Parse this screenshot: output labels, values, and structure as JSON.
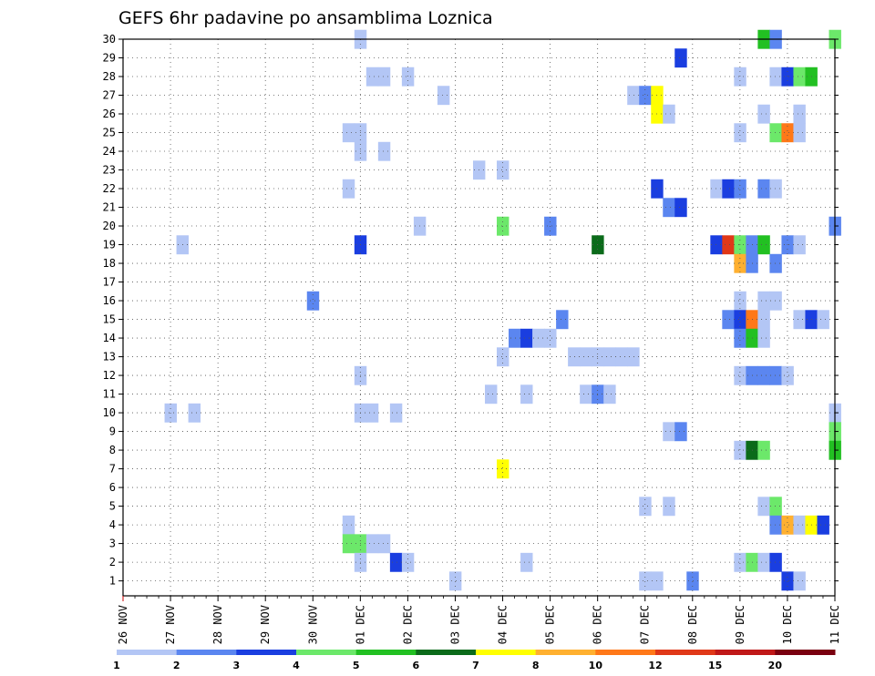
{
  "chart_data": {
    "type": "heatmap",
    "title": "GEFS 6hr padavine po ansamblima Loznica",
    "xlabel": "",
    "ylabel": "",
    "x_ticks": [
      "26 NOV",
      "27 NOV",
      "28 NOV",
      "29 NOV",
      "30 NOV",
      "01 DEC",
      "02 DEC",
      "03 DEC",
      "04 DEC",
      "05 DEC",
      "06 DEC",
      "07 DEC",
      "08 DEC",
      "09 DEC",
      "10 DEC",
      "11 DEC"
    ],
    "y_ticks": [
      1,
      2,
      3,
      4,
      5,
      6,
      7,
      8,
      9,
      10,
      11,
      12,
      13,
      14,
      15,
      16,
      17,
      18,
      19,
      20,
      21,
      22,
      23,
      24,
      25,
      26,
      27,
      28,
      29,
      30
    ],
    "x_range_days": [
      0,
      15
    ],
    "y_range": [
      0.2,
      30
    ],
    "grid": true,
    "legend_placement": "bottom",
    "legend_labels": [
      "1",
      "2",
      "3",
      "4",
      "5",
      "6",
      "7",
      "8",
      "10",
      "12",
      "15",
      "20"
    ],
    "legend_colors": [
      "#b3c6f5",
      "#5b86f0",
      "#1a3ee0",
      "#6ce86a",
      "#22c022",
      "#0b6b1a",
      "#ffff00",
      "#ffb030",
      "#ff7818",
      "#e03818",
      "#c01818",
      "#7a0010"
    ],
    "value_units": "mm / 6h",
    "cells": [
      {
        "d": 5.0,
        "m": 30,
        "c": 0
      },
      {
        "d": 13.5,
        "m": 30,
        "c": 4
      },
      {
        "d": 13.75,
        "m": 30,
        "c": 1
      },
      {
        "d": 15.0,
        "m": 30,
        "c": 3
      },
      {
        "d": 11.75,
        "m": 29,
        "c": 2
      },
      {
        "d": 5.25,
        "m": 28,
        "c": 0
      },
      {
        "d": 5.5,
        "m": 28,
        "c": 0
      },
      {
        "d": 6.0,
        "m": 28,
        "c": 0
      },
      {
        "d": 13.0,
        "m": 28,
        "c": 0
      },
      {
        "d": 13.75,
        "m": 28,
        "c": 0
      },
      {
        "d": 14.0,
        "m": 28,
        "c": 2
      },
      {
        "d": 14.25,
        "m": 28,
        "c": 3
      },
      {
        "d": 14.5,
        "m": 28,
        "c": 4
      },
      {
        "d": 6.75,
        "m": 27,
        "c": 0
      },
      {
        "d": 10.75,
        "m": 27,
        "c": 0
      },
      {
        "d": 11.0,
        "m": 27,
        "c": 1
      },
      {
        "d": 11.25,
        "m": 27,
        "c": 6
      },
      {
        "d": 11.25,
        "m": 26,
        "c": 6
      },
      {
        "d": 11.5,
        "m": 26,
        "c": 0
      },
      {
        "d": 13.5,
        "m": 26,
        "c": 0
      },
      {
        "d": 14.25,
        "m": 26,
        "c": 0
      },
      {
        "d": 4.75,
        "m": 25,
        "c": 0
      },
      {
        "d": 5.0,
        "m": 25,
        "c": 0
      },
      {
        "d": 13.0,
        "m": 25,
        "c": 0
      },
      {
        "d": 13.75,
        "m": 25,
        "c": 3
      },
      {
        "d": 14.0,
        "m": 25,
        "c": 8
      },
      {
        "d": 14.25,
        "m": 25,
        "c": 0
      },
      {
        "d": 5.0,
        "m": 24,
        "c": 0
      },
      {
        "d": 5.5,
        "m": 24,
        "c": 0
      },
      {
        "d": 7.5,
        "m": 23,
        "c": 0
      },
      {
        "d": 8.0,
        "m": 23,
        "c": 0
      },
      {
        "d": 4.75,
        "m": 22,
        "c": 0
      },
      {
        "d": 11.25,
        "m": 22,
        "c": 2
      },
      {
        "d": 12.5,
        "m": 22,
        "c": 0
      },
      {
        "d": 12.75,
        "m": 22,
        "c": 2
      },
      {
        "d": 13.0,
        "m": 22,
        "c": 1
      },
      {
        "d": 13.5,
        "m": 22,
        "c": 1
      },
      {
        "d": 13.75,
        "m": 22,
        "c": 0
      },
      {
        "d": 11.5,
        "m": 21,
        "c": 1
      },
      {
        "d": 11.75,
        "m": 21,
        "c": 2
      },
      {
        "d": 6.25,
        "m": 20,
        "c": 0
      },
      {
        "d": 8.0,
        "m": 20,
        "c": 3
      },
      {
        "d": 9.0,
        "m": 20,
        "c": 1
      },
      {
        "d": 15.0,
        "m": 20,
        "c": 1
      },
      {
        "d": 1.25,
        "m": 19,
        "c": 0
      },
      {
        "d": 5.0,
        "m": 19,
        "c": 2
      },
      {
        "d": 10.0,
        "m": 19,
        "c": 5
      },
      {
        "d": 12.5,
        "m": 19,
        "c": 2
      },
      {
        "d": 12.75,
        "m": 19,
        "c": 9
      },
      {
        "d": 13.0,
        "m": 19,
        "c": 3
      },
      {
        "d": 13.25,
        "m": 19,
        "c": 1
      },
      {
        "d": 13.5,
        "m": 19,
        "c": 4
      },
      {
        "d": 14.0,
        "m": 19,
        "c": 1
      },
      {
        "d": 14.25,
        "m": 19,
        "c": 0
      },
      {
        "d": 13.0,
        "m": 18,
        "c": 7
      },
      {
        "d": 13.25,
        "m": 18,
        "c": 1
      },
      {
        "d": 13.75,
        "m": 18,
        "c": 1
      },
      {
        "d": 4.0,
        "m": 16,
        "c": 1
      },
      {
        "d": 13.0,
        "m": 16,
        "c": 0
      },
      {
        "d": 13.5,
        "m": 16,
        "c": 0
      },
      {
        "d": 13.75,
        "m": 16,
        "c": 0
      },
      {
        "d": 9.25,
        "m": 15,
        "c": 1
      },
      {
        "d": 12.75,
        "m": 15,
        "c": 1
      },
      {
        "d": 13.0,
        "m": 15,
        "c": 2
      },
      {
        "d": 13.25,
        "m": 15,
        "c": 8
      },
      {
        "d": 13.5,
        "m": 15,
        "c": 0
      },
      {
        "d": 14.25,
        "m": 15,
        "c": 0
      },
      {
        "d": 14.5,
        "m": 15,
        "c": 2
      },
      {
        "d": 14.75,
        "m": 15,
        "c": 0
      },
      {
        "d": 8.25,
        "m": 14,
        "c": 1
      },
      {
        "d": 8.5,
        "m": 14,
        "c": 2
      },
      {
        "d": 8.75,
        "m": 14,
        "c": 0
      },
      {
        "d": 9.0,
        "m": 14,
        "c": 0
      },
      {
        "d": 13.0,
        "m": 14,
        "c": 1
      },
      {
        "d": 13.25,
        "m": 14,
        "c": 4
      },
      {
        "d": 13.5,
        "m": 14,
        "c": 0
      },
      {
        "d": 8.0,
        "m": 13,
        "c": 0
      },
      {
        "d": 9.5,
        "m": 13,
        "c": 0
      },
      {
        "d": 9.75,
        "m": 13,
        "c": 0
      },
      {
        "d": 10.0,
        "m": 13,
        "c": 0
      },
      {
        "d": 10.25,
        "m": 13,
        "c": 0
      },
      {
        "d": 10.5,
        "m": 13,
        "c": 0
      },
      {
        "d": 10.75,
        "m": 13,
        "c": 0
      },
      {
        "d": 5.0,
        "m": 12,
        "c": 0
      },
      {
        "d": 13.0,
        "m": 12,
        "c": 0
      },
      {
        "d": 13.25,
        "m": 12,
        "c": 1
      },
      {
        "d": 13.5,
        "m": 12,
        "c": 1
      },
      {
        "d": 13.75,
        "m": 12,
        "c": 1
      },
      {
        "d": 14.0,
        "m": 12,
        "c": 0
      },
      {
        "d": 7.75,
        "m": 11,
        "c": 0
      },
      {
        "d": 8.5,
        "m": 11,
        "c": 0
      },
      {
        "d": 9.75,
        "m": 11,
        "c": 0
      },
      {
        "d": 10.0,
        "m": 11,
        "c": 1
      },
      {
        "d": 10.25,
        "m": 11,
        "c": 0
      },
      {
        "d": 1.0,
        "m": 10,
        "c": 0
      },
      {
        "d": 1.5,
        "m": 10,
        "c": 0
      },
      {
        "d": 5.0,
        "m": 10,
        "c": 0
      },
      {
        "d": 5.25,
        "m": 10,
        "c": 0
      },
      {
        "d": 5.75,
        "m": 10,
        "c": 0
      },
      {
        "d": 15.0,
        "m": 10,
        "c": 0
      },
      {
        "d": 11.5,
        "m": 9,
        "c": 0
      },
      {
        "d": 11.75,
        "m": 9,
        "c": 1
      },
      {
        "d": 15.0,
        "m": 9,
        "c": 3
      },
      {
        "d": 13.0,
        "m": 8,
        "c": 0
      },
      {
        "d": 13.25,
        "m": 8,
        "c": 5
      },
      {
        "d": 13.5,
        "m": 8,
        "c": 3
      },
      {
        "d": 15.0,
        "m": 8,
        "c": 4
      },
      {
        "d": 8.0,
        "m": 7,
        "c": 6
      },
      {
        "d": 11.0,
        "m": 5,
        "c": 0
      },
      {
        "d": 11.5,
        "m": 5,
        "c": 0
      },
      {
        "d": 13.5,
        "m": 5,
        "c": 0
      },
      {
        "d": 13.75,
        "m": 5,
        "c": 3
      },
      {
        "d": 4.75,
        "m": 4,
        "c": 0
      },
      {
        "d": 13.75,
        "m": 4,
        "c": 1
      },
      {
        "d": 14.0,
        "m": 4,
        "c": 7
      },
      {
        "d": 14.25,
        "m": 4,
        "c": 0
      },
      {
        "d": 14.5,
        "m": 4,
        "c": 6
      },
      {
        "d": 14.75,
        "m": 4,
        "c": 2
      },
      {
        "d": 4.75,
        "m": 3,
        "c": 3
      },
      {
        "d": 5.0,
        "m": 3,
        "c": 3
      },
      {
        "d": 5.25,
        "m": 3,
        "c": 0
      },
      {
        "d": 5.5,
        "m": 3,
        "c": 0
      },
      {
        "d": 5.0,
        "m": 2,
        "c": 0
      },
      {
        "d": 5.75,
        "m": 2,
        "c": 2
      },
      {
        "d": 6.0,
        "m": 2,
        "c": 0
      },
      {
        "d": 8.5,
        "m": 2,
        "c": 0
      },
      {
        "d": 13.0,
        "m": 2,
        "c": 0
      },
      {
        "d": 13.25,
        "m": 2,
        "c": 3
      },
      {
        "d": 13.5,
        "m": 2,
        "c": 0
      },
      {
        "d": 13.75,
        "m": 2,
        "c": 2
      },
      {
        "d": 7.0,
        "m": 1,
        "c": 0
      },
      {
        "d": 11.0,
        "m": 1,
        "c": 0
      },
      {
        "d": 11.25,
        "m": 1,
        "c": 0
      },
      {
        "d": 12.0,
        "m": 1,
        "c": 1
      },
      {
        "d": 14.0,
        "m": 1,
        "c": 2
      },
      {
        "d": 14.25,
        "m": 1,
        "c": 0
      }
    ]
  }
}
